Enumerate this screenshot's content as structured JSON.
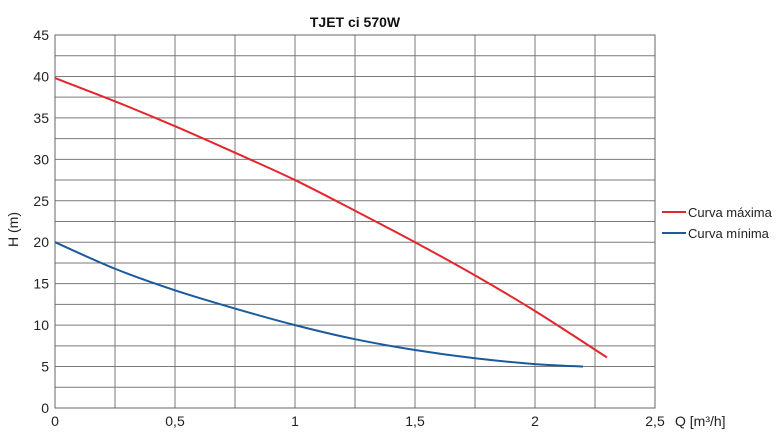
{
  "chart_data": {
    "type": "line",
    "title": "TJET ci 570W",
    "xlabel": "Q [m³/h]",
    "ylabel": "H (m)",
    "xlim": [
      0,
      2.5
    ],
    "ylim": [
      0,
      45
    ],
    "x_ticks": [
      "0",
      "0,5",
      "1",
      "1,5",
      "2",
      "2,5"
    ],
    "y_ticks": [
      "0",
      "5",
      "10",
      "15",
      "20",
      "25",
      "30",
      "35",
      "40",
      "45"
    ],
    "grid": true,
    "legend_position": "right",
    "series": [
      {
        "name": "Curva máxima",
        "color": "#e3262d",
        "x": [
          0,
          0.25,
          0.5,
          0.75,
          1.0,
          1.25,
          1.5,
          1.75,
          2.0,
          2.3
        ],
        "y": [
          39.8,
          37.0,
          34.0,
          30.8,
          27.5,
          23.8,
          20.0,
          16.0,
          11.7,
          6.1
        ]
      },
      {
        "name": "Curva mínima",
        "color": "#1c5a9e",
        "x": [
          0,
          0.25,
          0.5,
          0.75,
          1.0,
          1.25,
          1.5,
          1.75,
          2.0,
          2.2
        ],
        "y": [
          20.0,
          16.8,
          14.2,
          12.0,
          10.0,
          8.3,
          7.0,
          6.0,
          5.3,
          5.0
        ]
      }
    ]
  }
}
